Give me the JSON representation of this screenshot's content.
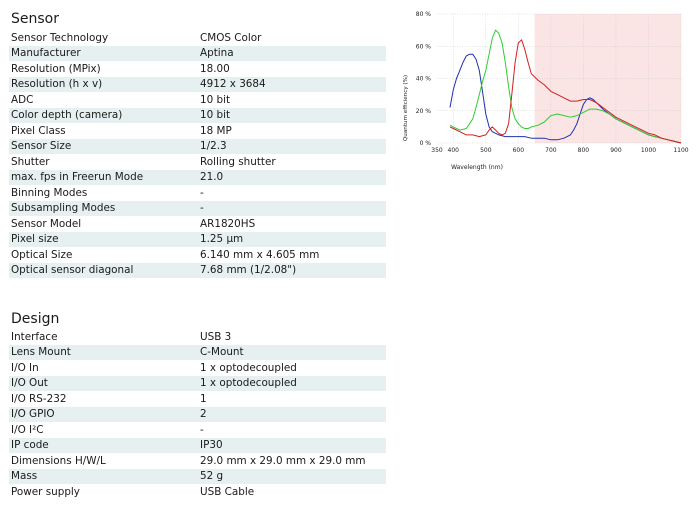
{
  "sensor": {
    "title": "Sensor",
    "rows": [
      [
        "Sensor Technology",
        "CMOS Color"
      ],
      [
        "Manufacturer",
        "Aptina"
      ],
      [
        "Resolution (MPix)",
        "18.00"
      ],
      [
        "Resolution (h x v)",
        "4912 x 3684"
      ],
      [
        "ADC",
        "10 bit"
      ],
      [
        "Color depth (camera)",
        "10 bit"
      ],
      [
        "Pixel Class",
        "18 MP"
      ],
      [
        "Sensor Size",
        "1/2.3"
      ],
      [
        "Shutter",
        "Rolling shutter"
      ],
      [
        "max. fps in Freerun Mode",
        "21.0"
      ],
      [
        "Binning Modes",
        "-"
      ],
      [
        "Subsampling Modes",
        "-"
      ],
      [
        "Sensor Model",
        "AR1820HS"
      ],
      [
        "Pixel size",
        "1.25 µm"
      ],
      [
        "Optical Size",
        "6.140 mm x 4.605 mm"
      ],
      [
        "Optical sensor diagonal",
        "7.68 mm (1/2.08\")"
      ]
    ]
  },
  "design": {
    "title": "Design",
    "rows": [
      [
        "Interface",
        "USB 3"
      ],
      [
        "Lens Mount",
        "C-Mount"
      ],
      [
        "I/O In",
        "1 x optodecoupled"
      ],
      [
        "I/O Out",
        "1 x optodecoupled"
      ],
      [
        "I/O RS-232",
        "1"
      ],
      [
        "I/O GPIO",
        "2"
      ],
      [
        "I/O I²C",
        "-"
      ],
      [
        "IP code",
        "IP30"
      ],
      [
        "Dimensions H/W/L",
        "29.0 mm x 29.0 mm x 29.0 mm"
      ],
      [
        "Mass",
        "52 g"
      ],
      [
        "Power supply",
        "USB Cable"
      ]
    ]
  },
  "chart_data": {
    "type": "line",
    "xlabel": "Wavelength (nm)",
    "ylabel": "Quantum efficiency (%)",
    "xlim": [
      350,
      1100
    ],
    "ylim": [
      0,
      80
    ],
    "x_ticks": [
      "350",
      "400",
      "500",
      "600",
      "700",
      "800",
      "900",
      "1000",
      "1100"
    ],
    "y_ticks": [
      "0 %",
      "20 %",
      "40 %",
      "60 %",
      "80 %"
    ],
    "shaded_region": {
      "from": 650,
      "to": 1100,
      "color": "#fbe4e4"
    },
    "grid": true,
    "series": [
      {
        "color": "#2030b0",
        "x": [
          390,
          400,
          410,
          420,
          430,
          440,
          450,
          460,
          470,
          480,
          490,
          500,
          510,
          520,
          540,
          560,
          580,
          600,
          620,
          640,
          660,
          680,
          700,
          720,
          740,
          760,
          770,
          780,
          790,
          800,
          810,
          820,
          830,
          840,
          850,
          860,
          880,
          900,
          920,
          940,
          960,
          980,
          1000,
          1020,
          1040,
          1060,
          1080,
          1100
        ],
        "y": [
          22,
          33,
          40,
          45,
          50,
          54,
          55,
          55,
          52,
          45,
          32,
          18,
          10,
          7,
          5,
          4,
          4,
          4,
          4,
          3,
          3,
          3,
          2,
          2,
          3,
          5,
          8,
          12,
          18,
          24,
          27,
          28,
          27,
          25,
          23,
          21,
          18,
          15,
          13,
          11,
          9,
          7,
          5,
          4,
          3,
          2,
          1,
          0
        ]
      },
      {
        "color": "#30cc30",
        "x": [
          390,
          400,
          420,
          440,
          460,
          470,
          480,
          490,
          500,
          510,
          520,
          530,
          540,
          550,
          560,
          570,
          580,
          590,
          600,
          610,
          620,
          630,
          640,
          660,
          680,
          700,
          720,
          740,
          760,
          780,
          800,
          820,
          840,
          860,
          880,
          900,
          920,
          940,
          960,
          980,
          1000,
          1020,
          1040,
          1060,
          1080,
          1100
        ],
        "y": [
          11,
          10,
          8,
          9,
          15,
          22,
          30,
          38,
          45,
          55,
          65,
          70,
          68,
          62,
          50,
          35,
          22,
          15,
          12,
          10,
          9,
          9,
          10,
          11,
          13,
          17,
          18,
          17,
          16,
          17,
          19,
          21,
          21,
          20,
          18,
          15,
          13,
          11,
          9,
          7,
          5,
          4,
          3,
          2,
          1,
          0
        ]
      },
      {
        "color": "#d02020",
        "x": [
          390,
          400,
          420,
          440,
          460,
          480,
          500,
          510,
          520,
          530,
          540,
          550,
          560,
          570,
          580,
          590,
          600,
          610,
          620,
          630,
          640,
          660,
          680,
          700,
          720,
          740,
          760,
          780,
          800,
          820,
          840,
          860,
          880,
          900,
          920,
          940,
          960,
          980,
          1000,
          1020,
          1040,
          1060,
          1080,
          1100
        ],
        "y": [
          10,
          9,
          7,
          5,
          5,
          4,
          5,
          8,
          10,
          8,
          6,
          5,
          6,
          12,
          30,
          50,
          62,
          64,
          58,
          50,
          43,
          39,
          36,
          32,
          30,
          28,
          26,
          26,
          27,
          27,
          25,
          22,
          19,
          16,
          14,
          12,
          10,
          8,
          6,
          5,
          3,
          2,
          1,
          0
        ]
      }
    ]
  }
}
